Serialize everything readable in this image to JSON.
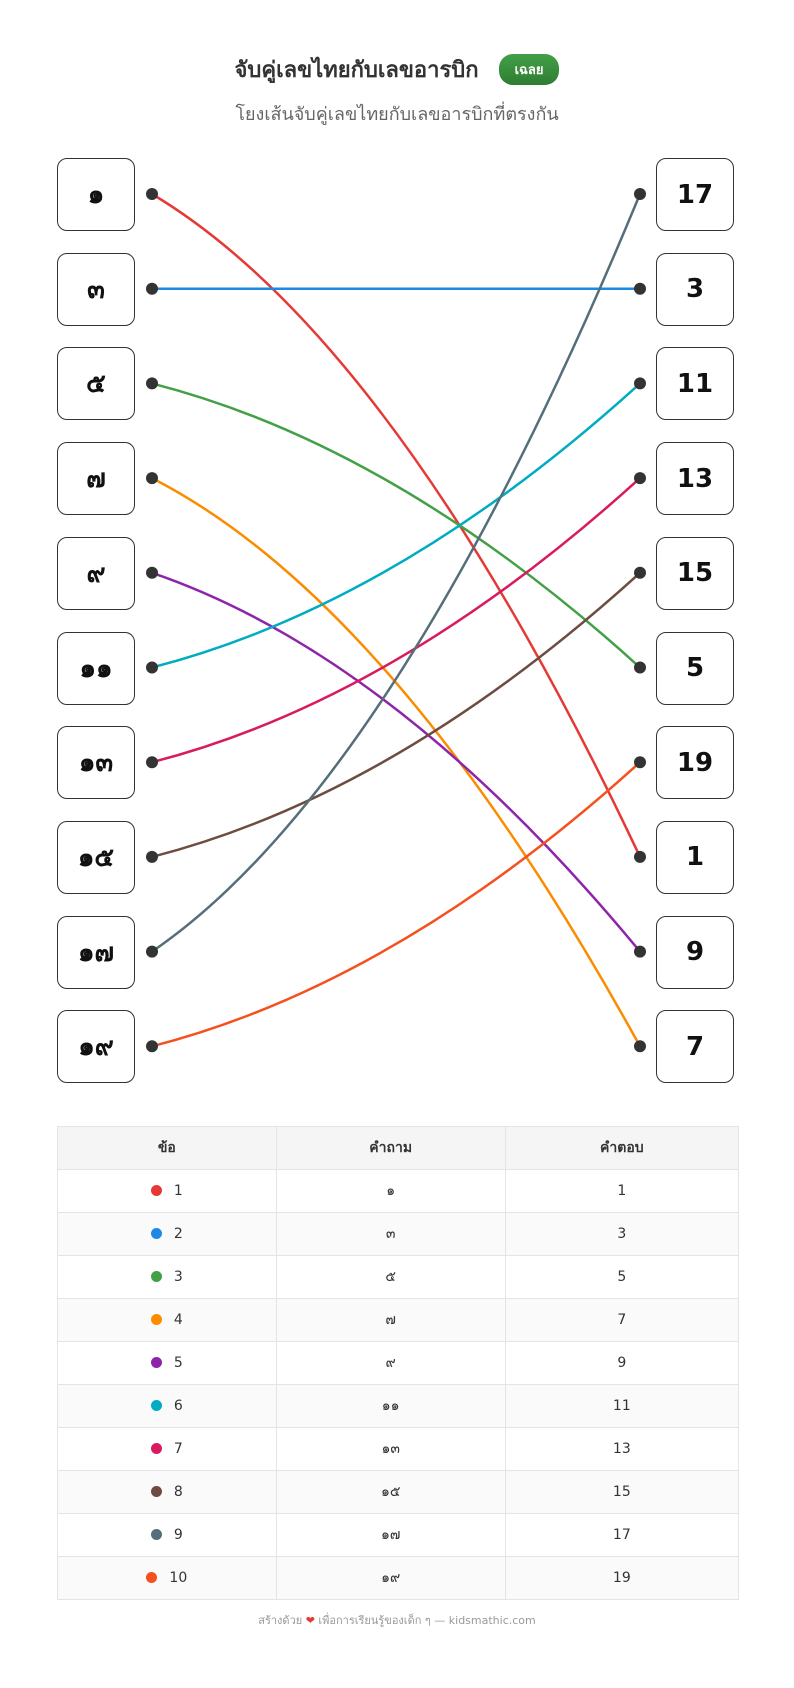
{
  "header": {
    "title": "จับคู่เลขไทยกับเลขอารบิก",
    "answer_button": "เฉลย",
    "subtitle": "โยงเส้นจับคู่เลขไทยกับเลขอารบิกที่ตรงกัน"
  },
  "left_items": [
    "๑",
    "๓",
    "๕",
    "๗",
    "๙",
    "๑๑",
    "๑๓",
    "๑๕",
    "๑๗",
    "๑๙"
  ],
  "right_items": [
    "17",
    "3",
    "11",
    "13",
    "15",
    "5",
    "19",
    "1",
    "9",
    "7"
  ],
  "connections": [
    {
      "left": 0,
      "right": 7,
      "color": "#e53935"
    },
    {
      "left": 1,
      "right": 1,
      "color": "#1e88e5"
    },
    {
      "left": 2,
      "right": 5,
      "color": "#43a047"
    },
    {
      "left": 3,
      "right": 9,
      "color": "#fb8c00"
    },
    {
      "left": 4,
      "right": 8,
      "color": "#8e24aa"
    },
    {
      "left": 5,
      "right": 2,
      "color": "#00acc1"
    },
    {
      "left": 6,
      "right": 3,
      "color": "#d81b60"
    },
    {
      "left": 7,
      "right": 4,
      "color": "#6d4c41"
    },
    {
      "left": 8,
      "right": 0,
      "color": "#546e7a"
    },
    {
      "left": 9,
      "right": 6,
      "color": "#f4511e"
    }
  ],
  "table": {
    "headers": [
      "ข้อ",
      "คำถาม",
      "คำตอบ"
    ],
    "rows": [
      {
        "no": "1",
        "q": "๑",
        "a": "1",
        "color": "#e53935"
      },
      {
        "no": "2",
        "q": "๓",
        "a": "3",
        "color": "#1e88e5"
      },
      {
        "no": "3",
        "q": "๕",
        "a": "5",
        "color": "#43a047"
      },
      {
        "no": "4",
        "q": "๗",
        "a": "7",
        "color": "#fb8c00"
      },
      {
        "no": "5",
        "q": "๙",
        "a": "9",
        "color": "#8e24aa"
      },
      {
        "no": "6",
        "q": "๑๑",
        "a": "11",
        "color": "#00acc1"
      },
      {
        "no": "7",
        "q": "๑๓",
        "a": "13",
        "color": "#d81b60"
      },
      {
        "no": "8",
        "q": "๑๕",
        "a": "15",
        "color": "#6d4c41"
      },
      {
        "no": "9",
        "q": "๑๗",
        "a": "17",
        "color": "#546e7a"
      },
      {
        "no": "10",
        "q": "๑๙",
        "a": "19",
        "color": "#f4511e"
      }
    ]
  },
  "footer": {
    "prefix": "สร้างด้วย",
    "heart": "❤",
    "suffix": "เพื่อการเรียนรู้ของเด็ก ๆ — kidsmathic.com"
  }
}
